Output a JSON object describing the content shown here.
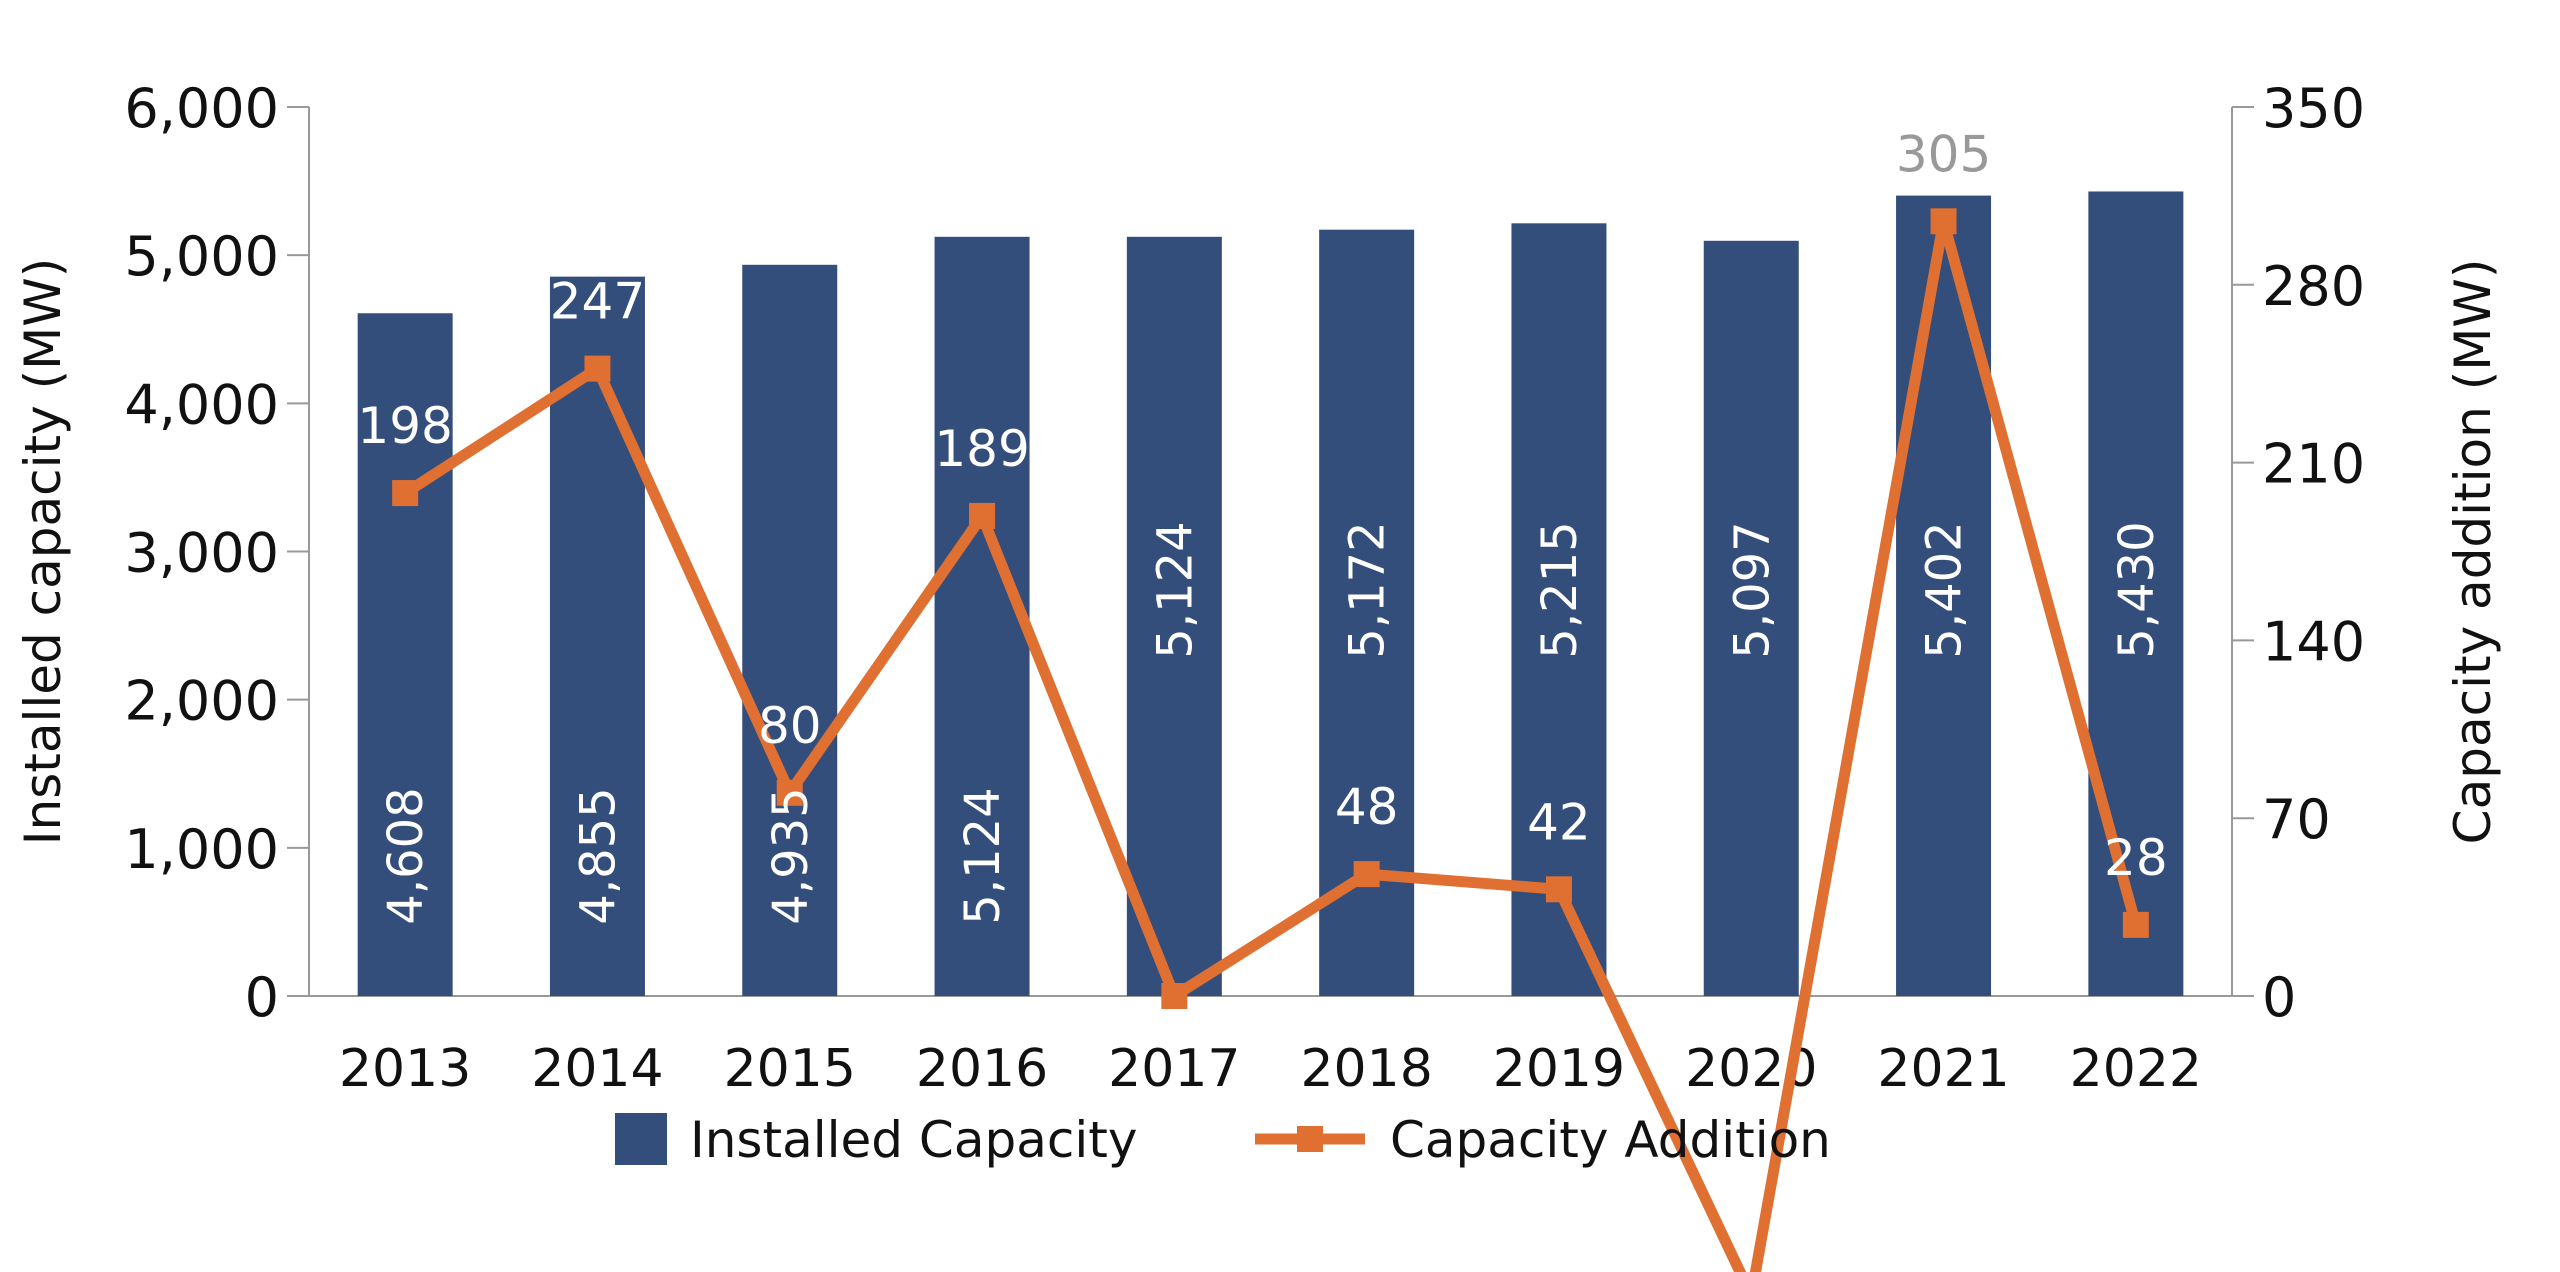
{
  "chart_data": {
    "type": "bar+line",
    "categories": [
      "2013",
      "2014",
      "2015",
      "2016",
      "2017",
      "2018",
      "2019",
      "2020",
      "2021",
      "2022"
    ],
    "series": [
      {
        "name": "Installed Capacity",
        "type": "bar",
        "axis": "left",
        "values": [
          4608,
          4855,
          4935,
          5124,
          5124,
          5172,
          5215,
          5097,
          5402,
          5430
        ],
        "labels": [
          "4,608",
          "4,855",
          "4,935",
          "5,124",
          "5,124",
          "5,172",
          "5,215",
          "5,097",
          "5,402",
          "5,430"
        ],
        "color": "#344e7c"
      },
      {
        "name": "Capacity Addition",
        "type": "line",
        "axis": "right",
        "values": [
          198,
          247,
          80,
          189,
          0,
          48,
          42,
          -118,
          305,
          28
        ],
        "labels": [
          "198",
          "247",
          "80",
          "189",
          "",
          "48",
          "42",
          "",
          "305",
          "28"
        ],
        "color": "#e06f32"
      }
    ],
    "ylabel": "Installed capacity (MW)",
    "y2label": "Capacity addition (MW)",
    "ylim": [
      0,
      6000
    ],
    "y2lim": [
      0,
      350
    ],
    "yticks": [
      "0",
      "1,000",
      "2,000",
      "3,000",
      "4,000",
      "5,000",
      "6,000"
    ],
    "y2ticks": [
      "0",
      "70",
      "140",
      "210",
      "280",
      "350"
    ],
    "grid": false,
    "legend": "bottom"
  }
}
